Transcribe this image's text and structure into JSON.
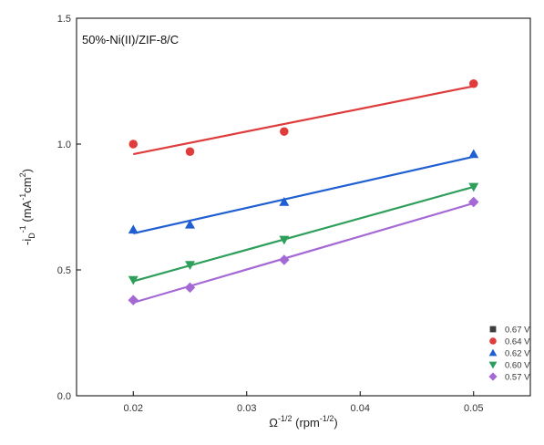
{
  "chart_data": {
    "type": "scatter",
    "title": "",
    "annotation": "50%-Ni(II)/ZIF-8/C",
    "xlabel": {
      "main": "Ω",
      "sup1": "-1/2",
      "unit_open": " (rpm",
      "unit_sup": "-1/2",
      "unit_close": ")"
    },
    "ylabel": {
      "lead": "-i",
      "sub": "D",
      "sup1": "-1",
      "unit_open": " (mA",
      "unit_sup1": "-1",
      "unit_mid": "cm",
      "unit_sup2": "2",
      "unit_close": ")"
    },
    "xlim": [
      0.015,
      0.055
    ],
    "ylim": [
      0.0,
      1.5
    ],
    "xticks": [
      0.02,
      0.03,
      0.04,
      0.05
    ],
    "xtick_labels": [
      "0.02",
      "0.03",
      "0.04",
      "0.05"
    ],
    "yticks": [
      0.0,
      0.5,
      1.0,
      1.5
    ],
    "ytick_labels": [
      "0.0",
      "0.5",
      "1.0",
      "1.5"
    ],
    "grid": false,
    "legend_position": "bottom-right",
    "series": [
      {
        "name": "0.67 V",
        "marker": "square",
        "color": "#3d3d3d",
        "x": [],
        "y": [],
        "fit": null
      },
      {
        "name": "0.64 V",
        "marker": "circle",
        "color": "#e03c3c",
        "x": [
          0.02,
          0.025,
          0.0333,
          0.05
        ],
        "y": [
          1.0,
          0.97,
          1.05,
          1.24
        ],
        "fit": {
          "x": [
            0.02,
            0.05
          ],
          "y": [
            0.96,
            1.23
          ]
        }
      },
      {
        "name": "0.62 V",
        "marker": "triangle-up",
        "color": "#1f5fd1",
        "x": [
          0.02,
          0.025,
          0.0333,
          0.05
        ],
        "y": [
          0.66,
          0.68,
          0.77,
          0.96
        ],
        "fit": {
          "x": [
            0.02,
            0.05
          ],
          "y": [
            0.645,
            0.95
          ]
        }
      },
      {
        "name": "0.60 V",
        "marker": "triangle-down",
        "color": "#2e9f5b",
        "x": [
          0.02,
          0.025,
          0.0333,
          0.05
        ],
        "y": [
          0.46,
          0.52,
          0.62,
          0.83
        ],
        "fit": {
          "x": [
            0.02,
            0.05
          ],
          "y": [
            0.455,
            0.83
          ]
        }
      },
      {
        "name": "0.57 V",
        "marker": "diamond",
        "color": "#a569d6",
        "x": [
          0.02,
          0.025,
          0.0333,
          0.05
        ],
        "y": [
          0.38,
          0.43,
          0.54,
          0.77
        ],
        "fit": {
          "x": [
            0.02,
            0.05
          ],
          "y": [
            0.37,
            0.765
          ]
        }
      }
    ]
  }
}
